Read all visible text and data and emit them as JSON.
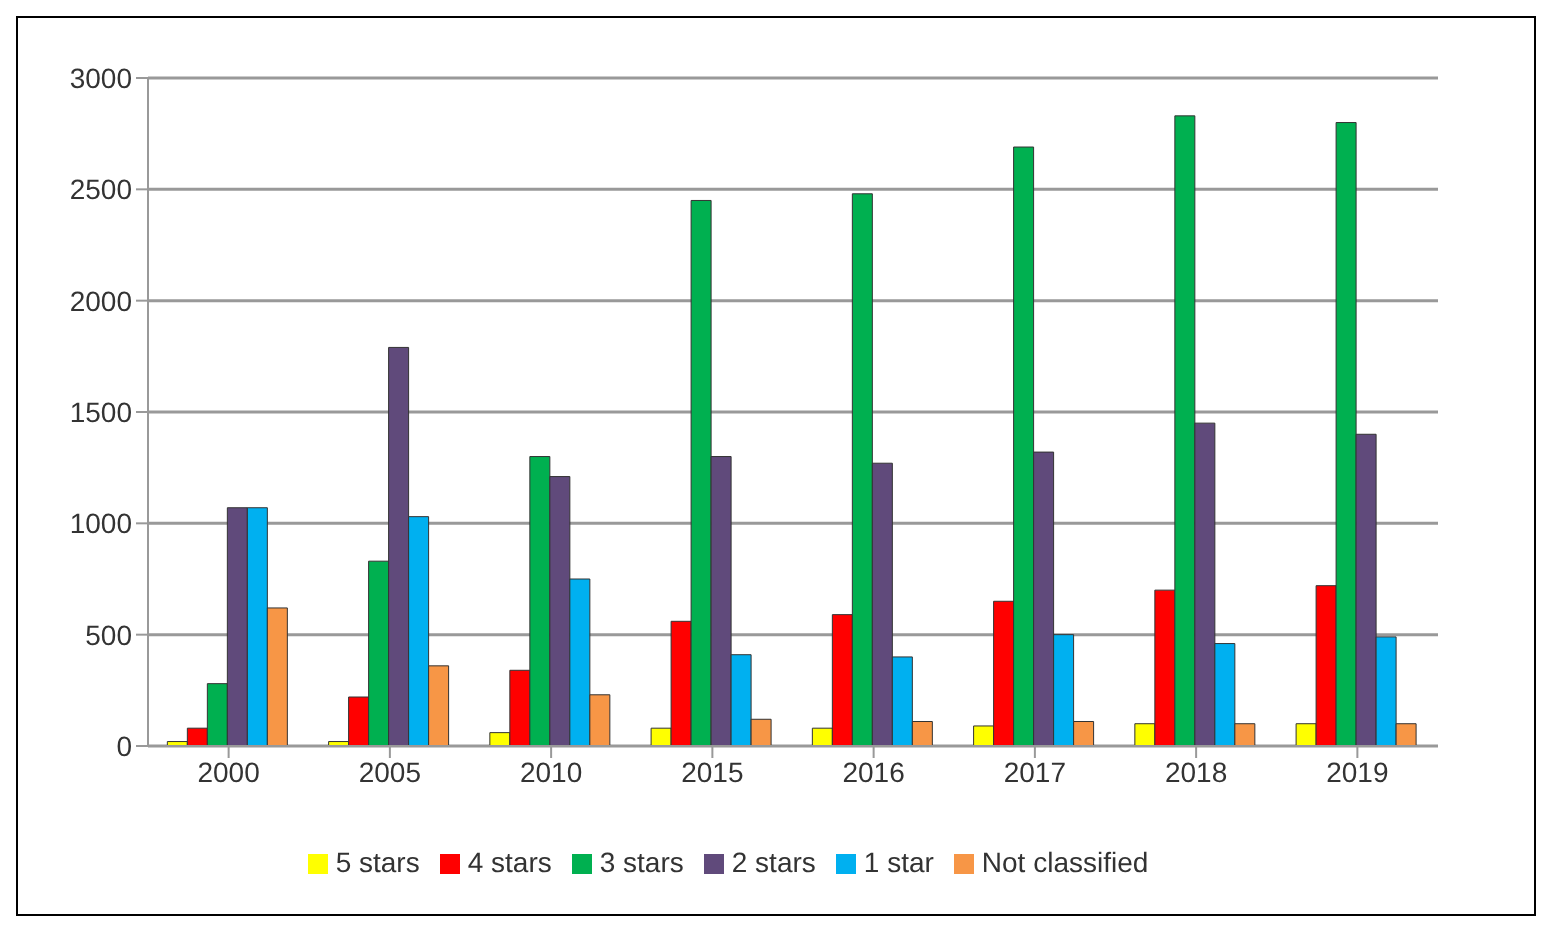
{
  "chart_data": {
    "type": "bar",
    "categories": [
      "2000",
      "2005",
      "2010",
      "2015",
      "2016",
      "2017",
      "2018",
      "2019"
    ],
    "series": [
      {
        "name": "5 stars",
        "color": "#ffff00",
        "values": [
          20,
          20,
          60,
          80,
          80,
          90,
          100,
          100
        ]
      },
      {
        "name": "4 stars",
        "color": "#ff0000",
        "values": [
          80,
          220,
          340,
          560,
          590,
          650,
          700,
          720
        ]
      },
      {
        "name": "3 stars",
        "color": "#00b050",
        "values": [
          280,
          830,
          1300,
          2450,
          2480,
          2690,
          2830,
          2800
        ]
      },
      {
        "name": "2 stars",
        "color": "#604a7b",
        "values": [
          1070,
          1790,
          1210,
          1300,
          1270,
          1320,
          1450,
          1400
        ]
      },
      {
        "name": "1 star",
        "color": "#00b0f0",
        "values": [
          1070,
          1030,
          750,
          410,
          400,
          500,
          460,
          490
        ]
      },
      {
        "name": "Not classified",
        "color": "#f79646",
        "values": [
          620,
          360,
          230,
          120,
          110,
          110,
          100,
          100
        ]
      }
    ],
    "ylim": [
      0,
      3000
    ],
    "yticks": [
      0,
      500,
      1000,
      1500,
      2000,
      2500,
      3000
    ],
    "grid": "y",
    "legend": "bottom"
  }
}
